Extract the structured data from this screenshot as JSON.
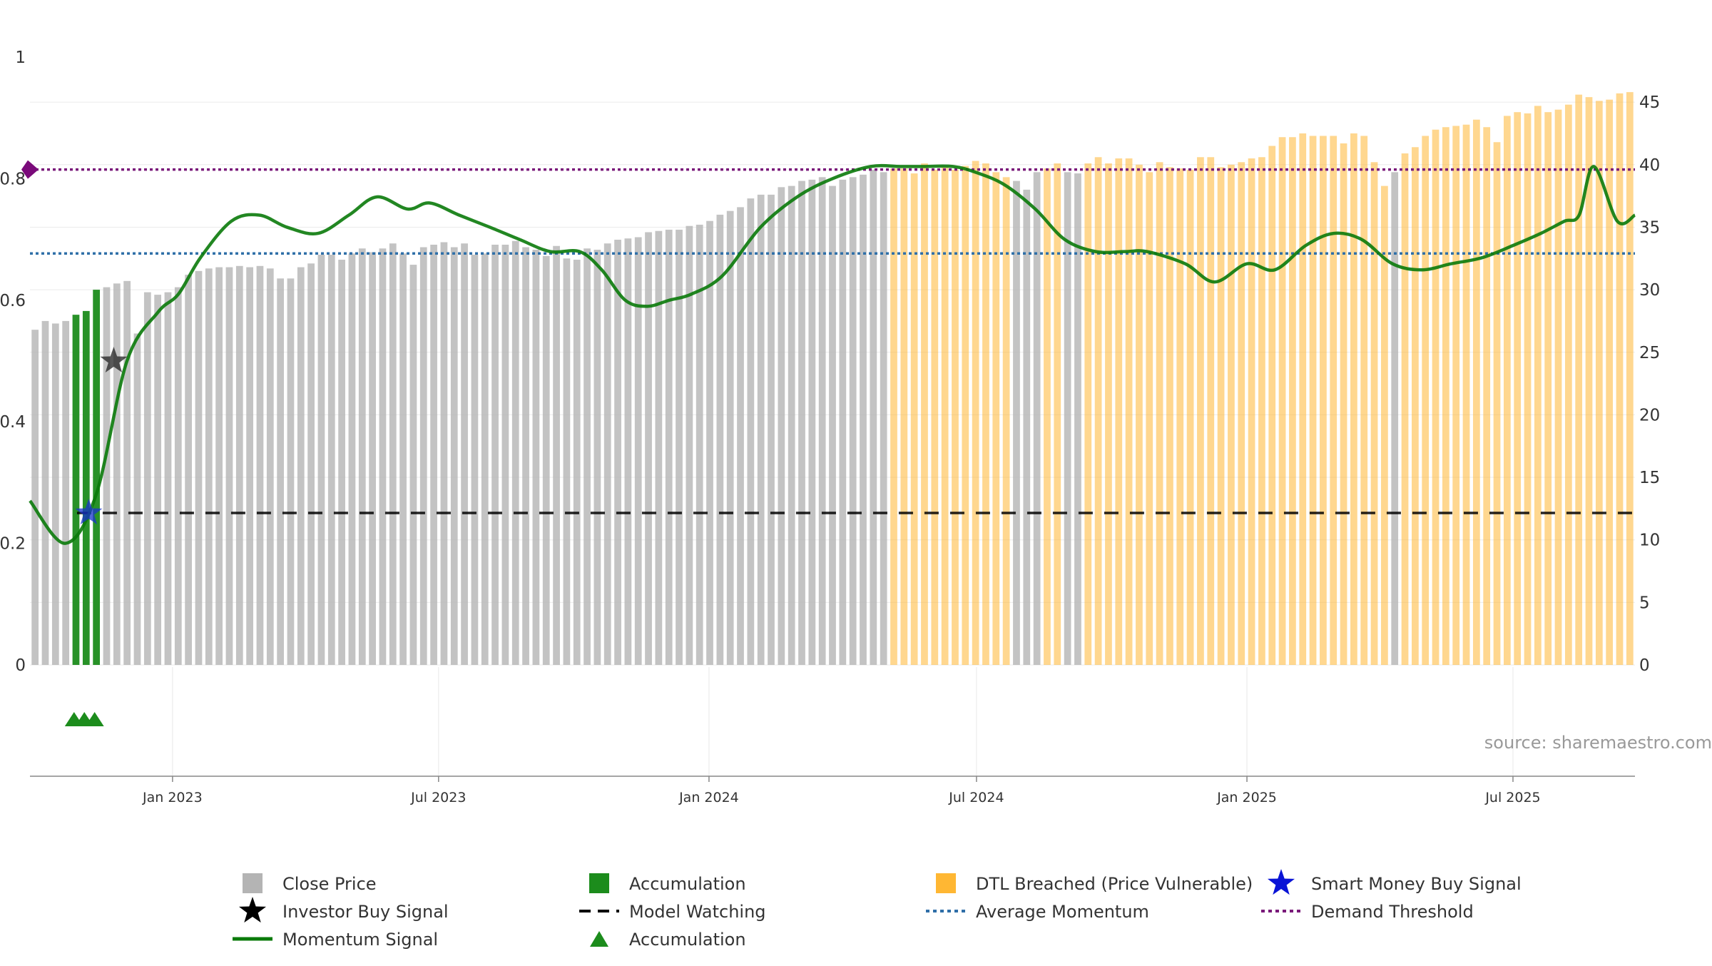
{
  "chart_data": {
    "type": "bar",
    "title": "",
    "source": "source: sharemaestro.com",
    "x_tick_labels": [
      "Jan 2023",
      "Jul 2023",
      "Jan 2024",
      "Jul 2024",
      "Jan 2025",
      "Jul 2025"
    ],
    "x_range": [
      "2022-09-26",
      "2025-09-22"
    ],
    "left_axis": {
      "ticks": [
        "0",
        "0.2",
        "0.4",
        "0.6",
        "0.8",
        "1"
      ],
      "range": [
        0,
        1
      ]
    },
    "right_axis": {
      "ticks": [
        "0",
        "5",
        "10",
        "15",
        "20",
        "25",
        "30",
        "35",
        "40",
        "45"
      ],
      "range": [
        0,
        47
      ]
    },
    "close_price_weekly": [
      26.8,
      27.5,
      27.3,
      27.5,
      28.0,
      28.3,
      30.0,
      30.2,
      30.5,
      30.7,
      26.5,
      29.8,
      29.6,
      29.8,
      30.2,
      31.2,
      31.5,
      31.7,
      31.8,
      31.8,
      31.9,
      31.8,
      31.9,
      31.7,
      30.9,
      30.9,
      31.8,
      32.1,
      32.8,
      32.8,
      32.4,
      32.9,
      33.3,
      33.0,
      33.3,
      33.7,
      32.9,
      32.0,
      33.4,
      33.6,
      33.8,
      33.4,
      33.7,
      32.8,
      32.9,
      33.6,
      33.6,
      33.9,
      33.4,
      33.2,
      32.7,
      33.5,
      32.5,
      32.4,
      33.3,
      33.2,
      33.7,
      34.0,
      34.1,
      34.2,
      34.6,
      34.7,
      34.8,
      34.8,
      35.1,
      35.2,
      35.5,
      36.0,
      36.3,
      36.6,
      37.3,
      37.6,
      37.6,
      38.2,
      38.3,
      38.7,
      38.8,
      39.0,
      38.3,
      38.8,
      39.0,
      39.2,
      39.6,
      39.4,
      39.7,
      39.7,
      39.3,
      40.1,
      39.6,
      39.8,
      39.6,
      39.9,
      40.3,
      40.1,
      39.4,
      39.0,
      38.7,
      38.0,
      39.4,
      39.7,
      40.1,
      39.4,
      39.3,
      40.1,
      40.6,
      40.1,
      40.5,
      40.5,
      40.0,
      39.4,
      40.2,
      39.8,
      39.7,
      39.6,
      40.6,
      40.6,
      39.8,
      40.0,
      40.2,
      40.5,
      40.6,
      41.5,
      42.2,
      42.2,
      42.5,
      42.3,
      42.3,
      42.3,
      41.7,
      42.5,
      42.3,
      40.2,
      38.3,
      39.4,
      40.9,
      41.4,
      42.3,
      42.8,
      43.0,
      43.1,
      43.2,
      43.6,
      43.0,
      41.8,
      43.9,
      44.2,
      44.1,
      44.7,
      44.2,
      44.4,
      44.8,
      45.6,
      45.4,
      45.1,
      45.2,
      45.7,
      45.8
    ],
    "bar_colors": {
      "close_price": "#b4b4b4",
      "accumulation": "#1c8c1c",
      "dtl_breached": "#ffb733"
    },
    "accumulation_bar_indices": [
      4,
      5,
      6
    ],
    "gray_bar_indices_after_breach": [
      96,
      97,
      98,
      101,
      102,
      133
    ],
    "dtl_breach_start_index": 84,
    "momentum_signal": {
      "color": "#0a7a0a",
      "x_dates": [
        "2022-09-26",
        "2022-10-20",
        "2022-11-10",
        "2022-12-01",
        "2022-12-22",
        "2023-01-05",
        "2023-01-20",
        "2023-02-10",
        "2023-03-01",
        "2023-03-20",
        "2023-04-10",
        "2023-05-01",
        "2023-05-20",
        "2023-06-10",
        "2023-06-25",
        "2023-07-15",
        "2023-08-05",
        "2023-08-25",
        "2023-09-15",
        "2023-10-05",
        "2023-10-20",
        "2023-11-05",
        "2023-11-20",
        "2023-12-05",
        "2023-12-20",
        "2024-01-10",
        "2024-02-05",
        "2024-03-01",
        "2024-03-25",
        "2024-04-20",
        "2024-05-10",
        "2024-05-25",
        "2024-06-15",
        "2024-07-01",
        "2024-07-20",
        "2024-08-10",
        "2024-08-30",
        "2024-09-20",
        "2024-10-10",
        "2024-10-25",
        "2024-11-20",
        "2024-12-10",
        "2025-01-01",
        "2025-01-20",
        "2025-02-10",
        "2025-03-01",
        "2025-03-20",
        "2025-04-10",
        "2025-04-30",
        "2025-05-20",
        "2025-06-10",
        "2025-07-01",
        "2025-07-20",
        "2025-08-05",
        "2025-08-15",
        "2025-08-25",
        "2025-09-10",
        "2025-09-22"
      ],
      "values": [
        0.27,
        0.2,
        0.28,
        0.5,
        0.58,
        0.61,
        0.67,
        0.73,
        0.74,
        0.72,
        0.71,
        0.74,
        0.77,
        0.75,
        0.76,
        0.74,
        0.72,
        0.7,
        0.68,
        0.68,
        0.65,
        0.6,
        0.59,
        0.6,
        0.61,
        0.64,
        0.72,
        0.77,
        0.8,
        0.82,
        0.82,
        0.82,
        0.82,
        0.81,
        0.79,
        0.75,
        0.7,
        0.68,
        0.68,
        0.68,
        0.66,
        0.63,
        0.66,
        0.65,
        0.69,
        0.71,
        0.7,
        0.66,
        0.65,
        0.66,
        0.67,
        0.69,
        0.71,
        0.73,
        0.74,
        0.82,
        0.73,
        0.74
      ]
    },
    "average_momentum": {
      "value": 0.677,
      "color": "#2f6fa8"
    },
    "demand_threshold": {
      "value": 0.815,
      "color": "#7a1a7a"
    },
    "model_watching": {
      "value": 0.25,
      "color": "#000000",
      "start_date": "2022-10-28"
    },
    "investor_buy_signal": {
      "date": "2022-11-22",
      "value": 0.5
    },
    "smart_money_buy_signal": {
      "date": "2022-11-05",
      "value": 0.25,
      "color": "#1a33cc"
    },
    "accumulation_triangles": {
      "dates": [
        "2022-10-26",
        "2022-11-02",
        "2022-11-09"
      ],
      "color": "#1c8c1c"
    },
    "demand_threshold_marker": {
      "date": "2022-09-26",
      "value": 0.815
    },
    "legend": [
      {
        "label": "Close Price",
        "kind": "square",
        "color": "#b4b4b4"
      },
      {
        "label": "Accumulation",
        "kind": "square",
        "color": "#1c8c1c"
      },
      {
        "label": "DTL Breached (Price Vulnerable)",
        "kind": "square",
        "color": "#ffb733"
      },
      {
        "label": "Smart Money Buy Signal",
        "kind": "star",
        "color": "#0a14d6"
      },
      {
        "label": "Investor Buy Signal",
        "kind": "star",
        "color": "#000000"
      },
      {
        "label": "Model Watching",
        "kind": "dash",
        "color": "#000000"
      },
      {
        "label": "Average Momentum",
        "kind": "dot",
        "color": "#2f6fa8"
      },
      {
        "label": "Demand Threshold",
        "kind": "dot",
        "color": "#7a1a7a"
      },
      {
        "label": "Momentum Signal",
        "kind": "line",
        "color": "#0a7a0a"
      },
      {
        "label": "Accumulation",
        "kind": "triangle",
        "color": "#1c8c1c"
      }
    ]
  }
}
